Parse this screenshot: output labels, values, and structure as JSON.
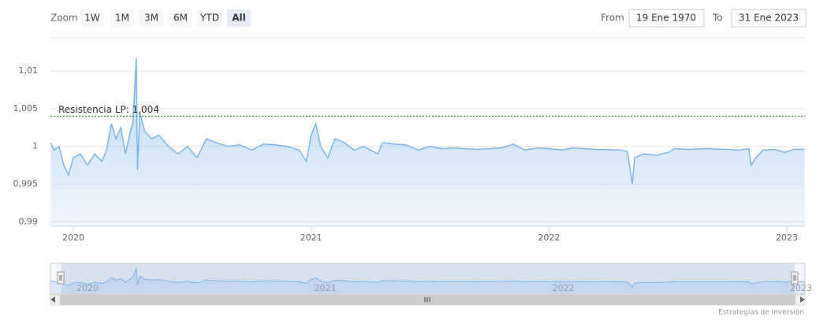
{
  "chart_data": {
    "type": "area",
    "range_selector": {
      "label": "Zoom",
      "buttons": [
        "1W",
        "1M",
        "3M",
        "6M",
        "YTD",
        "All"
      ],
      "selected": 5,
      "from_label": "From",
      "from": "19 Ene 1970",
      "to_label": "To",
      "to": "31 Ene 2023"
    },
    "x": [
      2019.905,
      2019.92,
      2019.94,
      2019.96,
      2019.98,
      2020.0,
      2020.03,
      2020.06,
      2020.09,
      2020.12,
      2020.14,
      2020.16,
      2020.18,
      2020.2,
      2020.22,
      2020.24,
      2020.25,
      2020.265,
      2020.27,
      2020.28,
      2020.3,
      2020.33,
      2020.36,
      2020.4,
      2020.44,
      2020.48,
      2020.52,
      2020.56,
      2020.6,
      2020.65,
      2020.7,
      2020.75,
      2020.8,
      2020.85,
      2020.9,
      2020.95,
      2020.98,
      2021.0,
      2021.02,
      2021.04,
      2021.07,
      2021.1,
      2021.14,
      2021.18,
      2021.22,
      2021.28,
      2021.3,
      2021.35,
      2021.4,
      2021.45,
      2021.5,
      2021.55,
      2021.6,
      2021.7,
      2021.8,
      2021.85,
      2021.9,
      2021.95,
      2022.0,
      2022.05,
      2022.1,
      2022.15,
      2022.2,
      2022.3,
      2022.33,
      2022.35,
      2022.36,
      2022.4,
      2022.45,
      2022.5,
      2022.53,
      2022.58,
      2022.65,
      2022.75,
      2022.8,
      2022.84,
      2022.85,
      2022.87,
      2022.9,
      2022.95,
      2022.99,
      2023.03,
      2023.075
    ],
    "values": [
      1.0005,
      0.9995,
      1.0,
      0.9975,
      0.9962,
      0.9985,
      0.999,
      0.9975,
      0.999,
      0.998,
      0.9995,
      1.003,
      1.001,
      1.0025,
      0.999,
      1.002,
      1.003,
      1.0117,
      0.9968,
      1.0045,
      1.002,
      1.001,
      1.0015,
      1.0,
      0.999,
      1.0,
      0.9985,
      1.001,
      1.0005,
      1.0,
      1.0002,
      0.9995,
      1.0003,
      1.0002,
      1.0,
      0.9995,
      0.998,
      1.0015,
      1.003,
      1.0,
      0.9985,
      1.001,
      1.0005,
      0.9995,
      1.0,
      0.999,
      1.0005,
      1.0003,
      1.0002,
      0.9995,
      1.0,
      0.9997,
      0.9998,
      0.9996,
      0.9998,
      1.0003,
      0.9995,
      0.9998,
      0.9997,
      0.9995,
      0.9998,
      0.9997,
      0.9996,
      0.9995,
      0.9993,
      0.995,
      0.9985,
      0.999,
      0.9988,
      0.9992,
      0.9997,
      0.9996,
      0.9997,
      0.9996,
      0.9995,
      0.9997,
      0.9975,
      0.9985,
      0.9995,
      0.9996,
      0.9992,
      0.9996,
      0.9996
    ],
    "color": "#7cb5ec",
    "xlim": [
      2019.904,
      2023.076
    ],
    "xticks": [
      2020,
      2021,
      2022,
      2023
    ],
    "ylim": [
      0.9894,
      1.0144
    ],
    "yticks": [
      {
        "value": 0.99,
        "label": "0,99"
      },
      {
        "value": 0.995,
        "label": "0,995"
      },
      1,
      {
        "value": 1.005,
        "label": "1,005"
      },
      {
        "value": 1.01,
        "label": "1,01"
      }
    ],
    "grid": true,
    "plot_lines": [
      {
        "value": 1.004,
        "label": "Resistencia LP: 1,004",
        "color": "#2e7d32"
      }
    ],
    "credits": "Estrategias de Inversión"
  }
}
